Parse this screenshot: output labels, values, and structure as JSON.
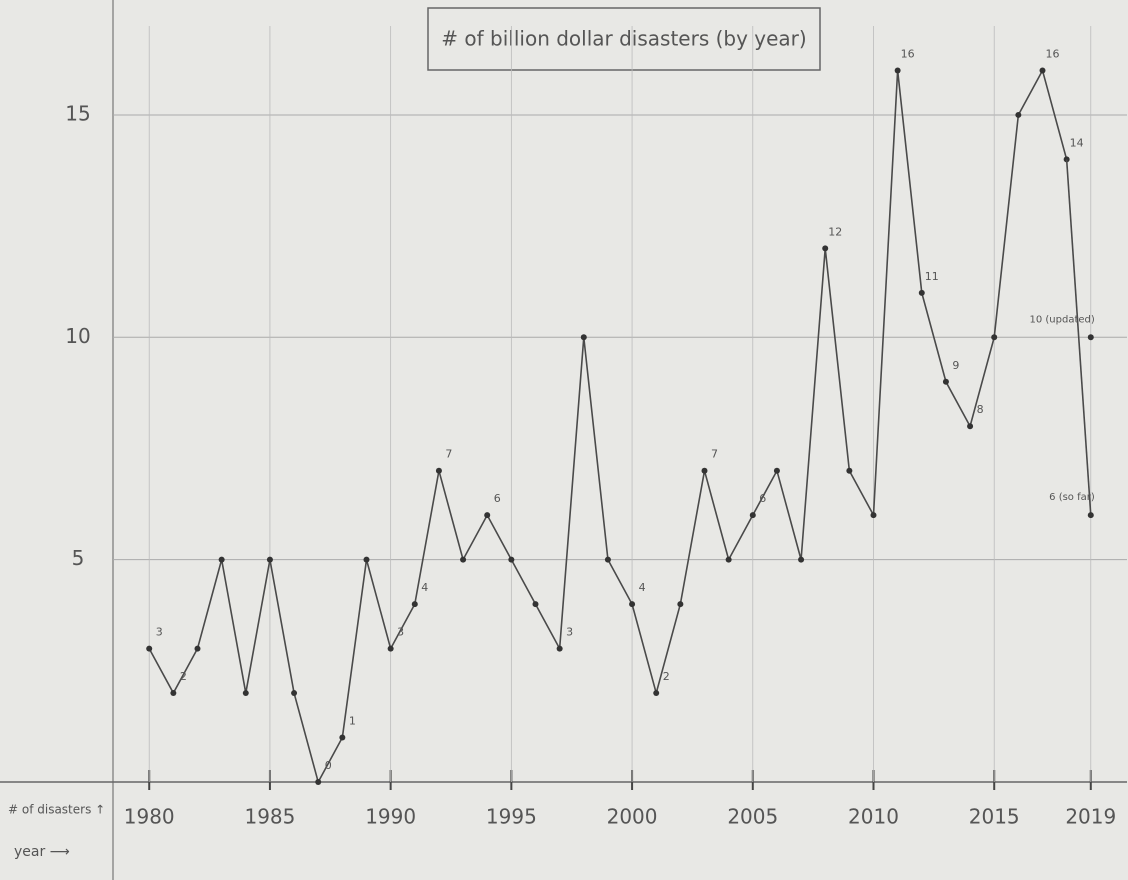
{
  "chart_data": {
    "type": "line",
    "title": "# of billion dollar disasters (by year)",
    "x_label": "year ⟶",
    "y_label": "# of disasters ↑",
    "x": [
      1980,
      1981,
      1982,
      1983,
      1984,
      1985,
      1986,
      1987,
      1988,
      1989,
      1990,
      1991,
      1992,
      1993,
      1994,
      1995,
      1996,
      1997,
      1998,
      1999,
      2000,
      2001,
      2002,
      2003,
      2004,
      2005,
      2006,
      2007,
      2008,
      2009,
      2010,
      2011,
      2012,
      2013,
      2014,
      2015,
      2016,
      2017,
      2018
    ],
    "values": [
      3,
      2,
      3,
      5,
      2,
      5,
      2,
      0,
      1,
      5,
      3,
      4,
      7,
      5,
      6,
      5,
      4,
      3,
      10,
      5,
      4,
      2,
      4,
      7,
      5,
      6,
      7,
      5,
      12,
      7,
      6,
      16,
      11,
      9,
      8,
      10,
      15,
      16,
      14
    ],
    "value_labels": [
      "3",
      "2",
      null,
      null,
      null,
      null,
      null,
      "0",
      "1",
      null,
      "3",
      "4",
      "7",
      null,
      "6",
      null,
      null,
      "3",
      null,
      null,
      "4",
      "2",
      null,
      "7",
      null,
      "6",
      null,
      null,
      "12",
      null,
      null,
      "16",
      "11",
      "9",
      "8",
      null,
      null,
      "16",
      "14"
    ],
    "extra_points": {
      "x": [
        2019,
        2019
      ],
      "values": [
        10,
        6
      ],
      "value_labels": [
        "10 (updated)",
        "6 (so far)"
      ]
    },
    "color": "#4a4a4a",
    "xlim": [
      1978.5,
      2020.5
    ],
    "ylim": [
      0,
      17
    ],
    "xticks": [
      1980,
      1985,
      1990,
      1995,
      2000,
      2005,
      2010,
      2015,
      2019
    ],
    "yticks": [
      5,
      10,
      15
    ],
    "grid": true
  }
}
